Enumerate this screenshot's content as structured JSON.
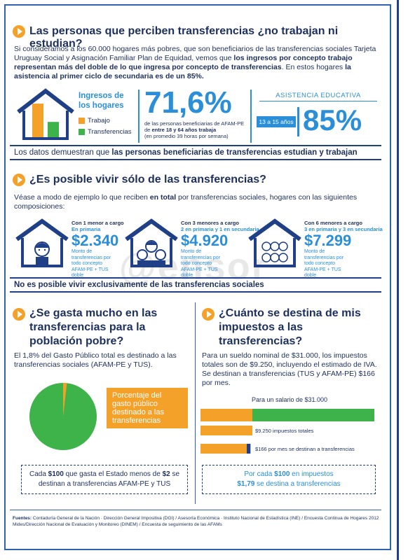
{
  "section1": {
    "title": "Las personas que perciben transferencias ¿no trabajan ni estudian?",
    "intro": {
      "p1": "Si consideramos a los 60.000 hogares más pobres, que son beneficiarios de las transferencias sociales Tarjeta Uruguay Social y Asignación Familiar Plan de Equidad, vemos que ",
      "b1": "los ingresos por concepto trabajo representan más del doble de lo que ingresa por concepto de transferencias",
      "p2": ". En estos hogares ",
      "b2": "la asistencia al primer ciclo de secundaria es de un 85%."
    },
    "income_chart": {
      "title": "Ingresos de los hogares",
      "legend_work": "Trabajo",
      "legend_transfer": "Transferencias",
      "work_ratio": 2.2,
      "colors": {
        "work": "#f4a12a",
        "transfer": "#3db34a"
      }
    },
    "stat_71": {
      "value": "71,6%",
      "desc_pre": "de las personas beneficiarias de AFAM-PE de ",
      "desc_bold": "entre 18 y 64 años trabaja",
      "desc_post": "(en promedio 39 horas por semana)"
    },
    "education": {
      "title": "ASISTENCIA EDUCATIVA",
      "age": "13 a 15 años",
      "value": "85%"
    },
    "band_pre": "Los datos demuestran que ",
    "band_bold": "las personas beneficiarias de transferencias estudian y trabajan"
  },
  "section2": {
    "title": "¿Es posible vivir sólo de las transferencias?",
    "intro_pre": "Véase a modo de ejemplo lo que reciben ",
    "intro_bold": "en total",
    "intro_post": " por transferencias sociales, hogares con las siguientes composiciones:",
    "houses": [
      {
        "title": "Con 1 menor a cargo",
        "subtitle": "En primaria",
        "amount": "$2.340",
        "note": "Monto de transferencias por todo concepto AFAM-PE + TUS doble"
      },
      {
        "title": "Con 3 menores a cargo",
        "subtitle": "2 en primaria y 1 en secundaria",
        "amount": "$4.920",
        "note": "Monto de transferencias por todo concepto AFAM-PE + TUS doble"
      },
      {
        "title": "Con 6 menores a cargo",
        "subtitle": "3 en primaria y 3 en secundaria",
        "amount": "$7.299",
        "note": "Monto de transferencias por todo concepto AFAM-PE + TUS doble"
      }
    ],
    "band": "No es posible vivir exclusivamente de las transferencias sociales",
    "watermark": "@ensor"
  },
  "section3": {
    "title": "¿Se gasta mucho en las transferencias para la población pobre?",
    "text": "El 1,8% del Gasto Público total es destinado a las transferencias sociales (AFAM-PE y TUS).",
    "pie_share": 0.018,
    "pie_label": "Porcentaje del gasto público destinado a las transferencias",
    "box_pre": "Cada ",
    "box_b1": "$100",
    "box_mid": " que gasta el Estado menos de ",
    "box_b2": "$2",
    "box_post": " se destinan a transferencias AFAM-PE y TUS",
    "colors": {
      "pie": "#3db34a",
      "label_bg": "#f4a12a"
    }
  },
  "section4": {
    "title": "¿Cuánto se destina de mis impuestos a las transferencias?",
    "text": "Para un sueldo nominal de $31.000, los impuestos totales son de $9.250, incluyendo el estimado de IVA. Se destinan a transferencias (TUS y AFAM-PE) $166 por mes.",
    "chart_title": "Para un salario de $31.000",
    "salary": 31000,
    "taxes": 9250,
    "transfer": 166,
    "label_taxes": "$9.250 impuestos totales",
    "label_transfer": "$166 por mes se destinan a transferencias",
    "box_pre": "Por cada ",
    "box_b1": "$100",
    "box_mid": " en impuestos",
    "box_b2": "$1,79",
    "box_post": " se destina a transferencias"
  },
  "footer": {
    "label": "Fuentes:",
    "text": "Contaduría General de la Nación · Dirección General Impositiva (DGI) / Asesoría Económica · Instituto Nacional de Estadística (INE) / Encuesta Continua de Hogares 2012 Mides/Dirección Nacional de Evaluación y Monitoreo (DINEM) / Encuesta de seguimiento de las AFAMs"
  }
}
